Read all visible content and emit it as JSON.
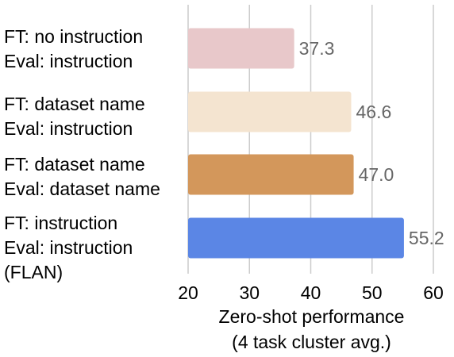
{
  "chart_data": {
    "type": "bar",
    "orientation": "horizontal",
    "categories": [
      [
        "FT: no instruction",
        "Eval: instruction"
      ],
      [
        "FT: dataset name",
        "Eval: instruction"
      ],
      [
        "FT: dataset name",
        "Eval: dataset name"
      ],
      [
        "FT: instruction",
        "Eval: instruction",
        "(FLAN)"
      ]
    ],
    "values": [
      37.3,
      46.6,
      47.0,
      55.2
    ],
    "value_labels": [
      "37.3",
      "46.6",
      "47.0",
      "55.2"
    ],
    "colors": [
      "#e8c8ca",
      "#f4e4d0",
      "#d3975b",
      "#5b86e5"
    ],
    "xlabel": [
      "Zero-shot performance",
      "(4 task cluster avg.)"
    ],
    "xlim": [
      20,
      60
    ],
    "xticks": [
      20,
      30,
      40,
      50,
      60
    ],
    "xtick_labels": [
      "20",
      "30",
      "40",
      "50",
      "60"
    ],
    "grid": true,
    "legend": "none"
  }
}
